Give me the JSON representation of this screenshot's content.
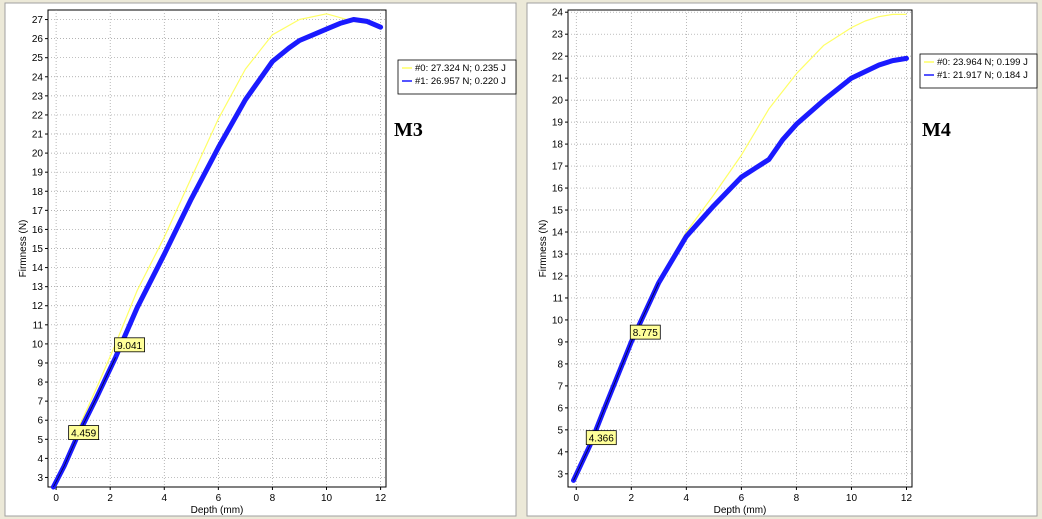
{
  "chart_data": [
    {
      "type": "line",
      "panel_label": "M3",
      "xlabel": "Depth (mm)",
      "ylabel": "Firmness (N)",
      "xlim": [
        -0.3,
        12.2
      ],
      "ylim": [
        2.5,
        27.5
      ],
      "xticks": [
        0,
        2,
        4,
        6,
        8,
        10,
        12
      ],
      "yticks": [
        3,
        4,
        5,
        6,
        7,
        8,
        9,
        10,
        11,
        12,
        13,
        14,
        15,
        16,
        17,
        18,
        19,
        20,
        21,
        22,
        23,
        24,
        25,
        26,
        27
      ],
      "grid": true,
      "legend_position": "right",
      "series": [
        {
          "name": "#0: 27.324 N; 0.235 J",
          "color": "#ffff66",
          "x": [
            -0.1,
            0.3,
            0.8,
            1.5,
            2.2,
            3,
            4,
            5,
            6,
            7,
            8,
            9,
            10,
            10.5,
            11,
            11.5,
            12
          ],
          "y": [
            2.5,
            3.8,
            5.5,
            7.7,
            10.0,
            12.8,
            15.6,
            18.7,
            21.8,
            24.4,
            26.2,
            27.0,
            27.3,
            27.1,
            26.9,
            26.8,
            26.6
          ]
        },
        {
          "name": "#1: 26.957 N; 0.220 J",
          "color": "#1a1aff",
          "x": [
            -0.1,
            0.3,
            0.8,
            1.5,
            2.2,
            3,
            4,
            5,
            6,
            7,
            8,
            8.6,
            9,
            9.5,
            10,
            10.5,
            11,
            11.5,
            12
          ],
          "y": [
            2.5,
            3.6,
            5.2,
            7.2,
            9.3,
            11.9,
            14.7,
            17.6,
            20.3,
            22.8,
            24.8,
            25.5,
            25.9,
            26.2,
            26.5,
            26.8,
            27.0,
            26.9,
            26.6
          ]
        }
      ],
      "annotations": [
        {
          "text": "9.041",
          "x": 2.2,
          "y": 9.9
        },
        {
          "text": "4.459",
          "x": 0.5,
          "y": 5.3
        }
      ]
    },
    {
      "type": "line",
      "panel_label": "M4",
      "xlabel": "Depth (mm)",
      "ylabel": "Firmness (N)",
      "xlim": [
        -0.3,
        12.2
      ],
      "ylim": [
        2.4,
        24.1
      ],
      "xticks": [
        0,
        2,
        4,
        6,
        8,
        10,
        12
      ],
      "yticks": [
        3,
        4,
        5,
        6,
        7,
        8,
        9,
        10,
        11,
        12,
        13,
        14,
        15,
        16,
        17,
        18,
        19,
        20,
        21,
        22,
        23,
        24
      ],
      "grid": true,
      "legend_position": "right",
      "series": [
        {
          "name": "#0: 23.964 N; 0.199 J",
          "color": "#ffff66",
          "x": [
            -0.1,
            0.5,
            1,
            2,
            3,
            4,
            5,
            6,
            7,
            8,
            9,
            10,
            10.5,
            11,
            11.5,
            12
          ],
          "y": [
            2.7,
            4.4,
            6.0,
            9.1,
            11.8,
            14.0,
            15.7,
            17.5,
            19.6,
            21.2,
            22.5,
            23.3,
            23.6,
            23.8,
            23.9,
            23.9
          ]
        },
        {
          "name": "#1: 21.917 N; 0.184 J",
          "color": "#1a1aff",
          "x": [
            -0.1,
            0.5,
            1,
            2,
            3,
            4,
            5,
            6,
            6.5,
            7,
            7.5,
            8,
            9,
            10,
            11,
            11.5,
            12
          ],
          "y": [
            2.7,
            4.3,
            5.9,
            9.0,
            11.7,
            13.8,
            15.2,
            16.5,
            16.9,
            17.3,
            18.2,
            18.9,
            20.0,
            21.0,
            21.6,
            21.8,
            21.9
          ]
        }
      ],
      "annotations": [
        {
          "text": "8.775",
          "x": 2.0,
          "y": 9.4
        },
        {
          "text": "4.366",
          "x": 0.4,
          "y": 4.6
        }
      ]
    }
  ]
}
